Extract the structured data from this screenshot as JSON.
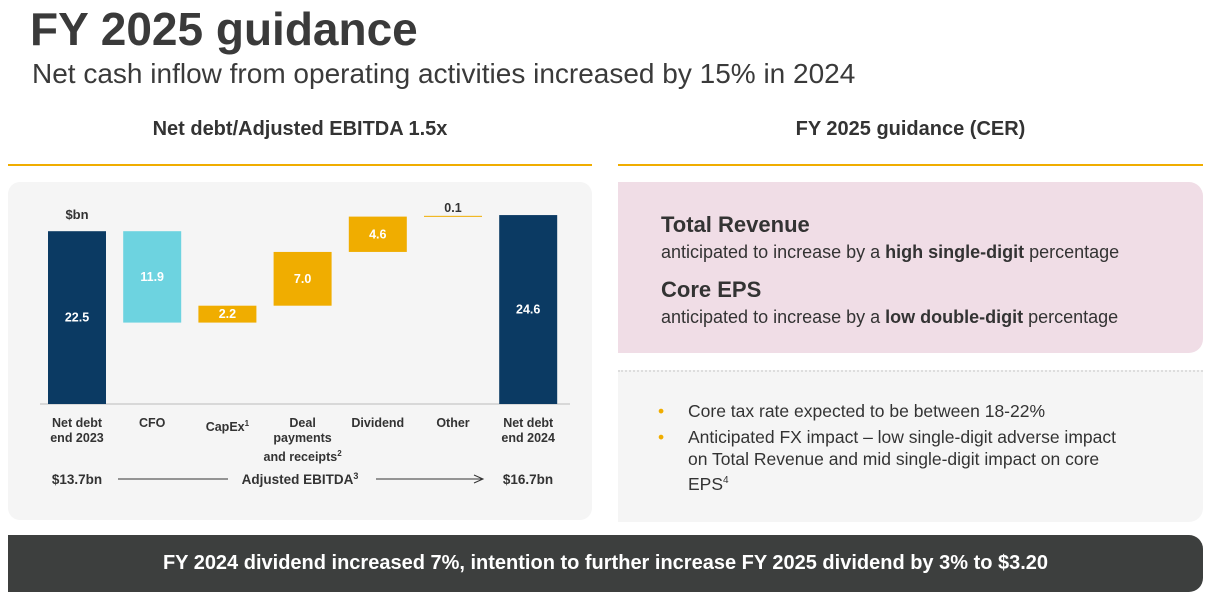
{
  "header": {
    "title": "FY 2025 guidance",
    "subtitle": "Net cash inflow from operating activities increased by 15% in 2024"
  },
  "left_heading": "Net debt/Adjusted EBITDA 1.5x",
  "right_heading": "FY 2025 guidance (CER)",
  "chart_data": {
    "type": "waterfall",
    "unit": "$bn",
    "categories": [
      [
        "Net debt",
        "end 2023"
      ],
      [
        "CFO"
      ],
      [
        "CapEx"
      ],
      [
        "Deal",
        "payments",
        "and receipts"
      ],
      [
        "Dividend"
      ],
      [
        "Other"
      ],
      [
        "Net debt",
        "end 2024"
      ]
    ],
    "category_notes": [
      null,
      null,
      "1",
      "2",
      null,
      null,
      null
    ],
    "values": [
      22.5,
      11.9,
      2.2,
      7.0,
      4.6,
      0.1,
      24.6
    ],
    "value_labels": [
      "22.5",
      "11.9",
      "2.2",
      "7.0",
      "4.6",
      "0.1",
      "24.6"
    ],
    "measures": [
      "total",
      "decrease",
      "increase",
      "increase",
      "increase",
      "increase",
      "total"
    ],
    "colors": [
      "#0b3a63",
      "#6dd3e0",
      "#f0ad00",
      "#f0ad00",
      "#f0ad00",
      "#f0ad00",
      "#0b3a63"
    ],
    "ylim": [
      0,
      25
    ],
    "ebitda": {
      "start": "$13.7bn",
      "label": "Adjusted EBITDA",
      "note": "3",
      "end": "$16.7bn"
    }
  },
  "guidance": [
    {
      "title": "Total Revenue",
      "parts": [
        "anticipated to increase by a ",
        "high single-digit",
        " percentage"
      ]
    },
    {
      "title": "Core EPS",
      "parts": [
        "anticipated to increase by a ",
        "low double-digit",
        " percentage"
      ]
    }
  ],
  "bullets": [
    {
      "text": "Core tax rate expected to be between 18-22%",
      "note": null
    },
    {
      "text": "Anticipated FX impact – low single-digit adverse impact on Total Revenue and mid single-digit impact on core EPS",
      "note": "4"
    }
  ],
  "footer": "FY 2024 dividend increased 7%, intention to further increase FY 2025 dividend by 3% to $3.20"
}
